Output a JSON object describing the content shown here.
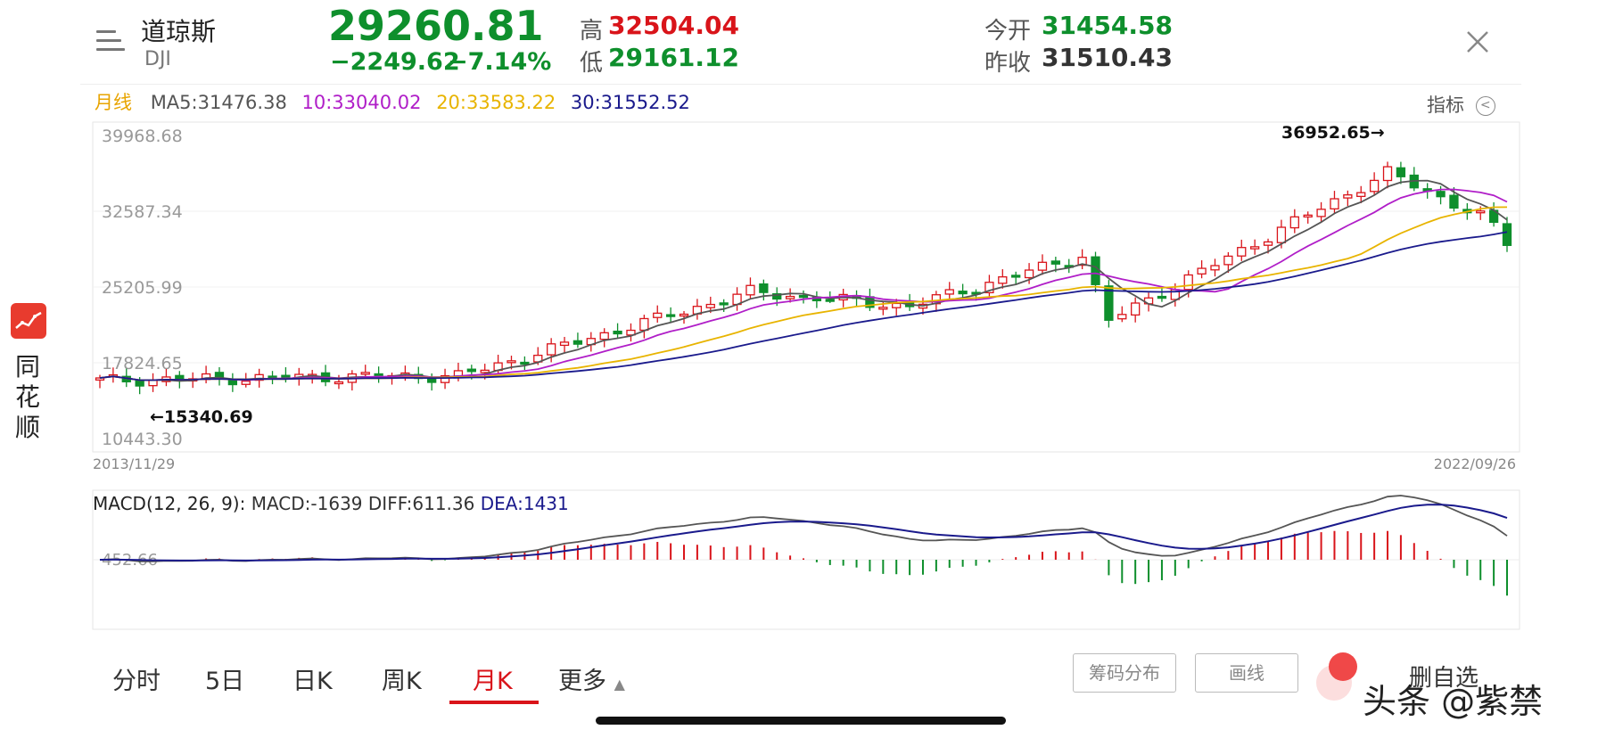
{
  "header": {
    "name": "道琼斯",
    "code": "DJI",
    "price": "29260.81",
    "change": "−2249.62",
    "change_pct": "−7.14%",
    "high_label": "高",
    "high": "32504.04",
    "low_label": "低",
    "low": "29161.12",
    "open_label": "今开",
    "open": "31454.58",
    "prev_close_label": "昨收",
    "prev_close": "31510.43"
  },
  "ma_bar": {
    "period": "月线",
    "ma5": "MA5:31476.38",
    "ma10": "10:33040.02",
    "ma20": "20:33583.22",
    "ma30": "30:31552.52",
    "indicator_label": "指标"
  },
  "main_chart": {
    "y_labels": [
      "39968.68",
      "32587.34",
      "25205.99",
      "17824.65",
      "10443.30"
    ],
    "date_start": "2013/11/29",
    "date_end": "2022/09/26",
    "max_annotation": "36952.65→",
    "min_annotation": "←15340.69"
  },
  "macd": {
    "label": "MACD(12, 26, 9):",
    "macd_value": "MACD:-1639",
    "diff": "DIFF:611.36",
    "dea": "DEA:1431",
    "y_label": "452.66"
  },
  "tabs": [
    "分时",
    "5日",
    "日K",
    "周K",
    "月K",
    "更多"
  ],
  "buttons": {
    "chips": "筹码分布",
    "draw": "画线",
    "remove": "删自选"
  },
  "side_brand": "同花顺",
  "watermark": "头条 @紫禁",
  "colors": {
    "up": "#d9141a",
    "down": "#0e8f2c",
    "ma5": "#555555",
    "ma10": "#b01ec8",
    "ma20": "#e8b400",
    "ma30": "#1a1a8c"
  },
  "chart_data": {
    "type": "candlestick",
    "period": "monthly",
    "x_range": [
      "2013/11/29",
      "2022/09/26"
    ],
    "ylim": [
      10443.3,
      39968.68
    ],
    "annotations": {
      "max": 36952.65,
      "min": 15340.69
    },
    "keypoints": [
      {
        "date": "2013-11",
        "close": 16086
      },
      {
        "date": "2015-08",
        "close": 16528
      },
      {
        "date": "2016-02",
        "close": 16517
      },
      {
        "date": "2017-12",
        "close": 24719
      },
      {
        "date": "2018-12",
        "close": 23327
      },
      {
        "date": "2020-01",
        "close": 28256
      },
      {
        "date": "2020-03",
        "close": 21917
      },
      {
        "date": "2021-12",
        "close": 36338
      },
      {
        "date": "2022-08",
        "close": 31510
      },
      {
        "date": "2022-09",
        "close": 29260
      }
    ],
    "moving_averages": {
      "MA5": 31476.38,
      "MA10": 33040.02,
      "MA20": 33583.22,
      "MA30": 31552.52
    },
    "macd": {
      "MACD": -1639,
      "DIFF": 611.36,
      "DEA": 1431
    }
  }
}
